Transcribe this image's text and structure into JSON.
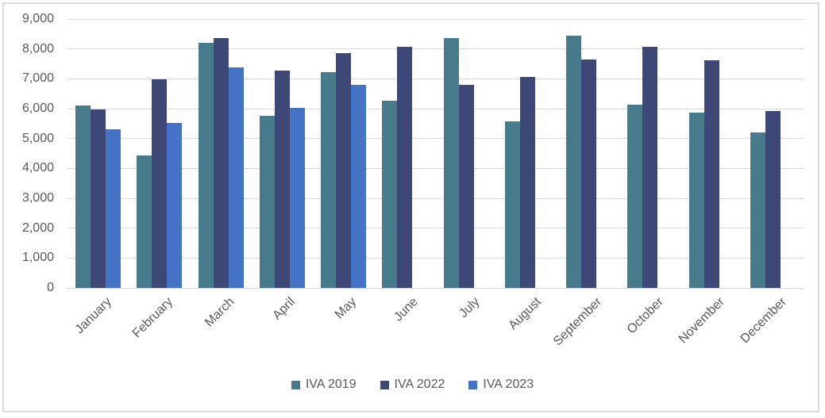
{
  "chart_data": {
    "type": "bar",
    "title": "",
    "xlabel": "",
    "ylabel": "",
    "categories": [
      "January",
      "February",
      "March",
      "April",
      "May",
      "June",
      "July",
      "August",
      "September",
      "October",
      "November",
      "December"
    ],
    "series": [
      {
        "name": "IVA 2019",
        "color": "#477B8C",
        "values": [
          6100,
          4430,
          8200,
          5770,
          7230,
          6270,
          8350,
          5570,
          8450,
          6120,
          5860,
          5210
        ]
      },
      {
        "name": "IVA 2022",
        "color": "#3D4876",
        "values": [
          5970,
          6970,
          8350,
          7280,
          7850,
          8080,
          6800,
          7050,
          7640,
          8060,
          7610,
          5930
        ]
      },
      {
        "name": "IVA 2023",
        "color": "#4472C4",
        "values": [
          5320,
          5530,
          7370,
          6040,
          6810,
          null,
          null,
          null,
          null,
          null,
          null,
          null
        ]
      }
    ],
    "ylim": [
      0,
      9000
    ],
    "ytick_step": 1000,
    "ytick_labels": [
      "0",
      "1,000",
      "2,000",
      "3,000",
      "4,000",
      "5,000",
      "6,000",
      "7,000",
      "8,000",
      "9,000"
    ],
    "grid": true,
    "legend_position": "bottom",
    "axis_text_color": "#595959",
    "gridline_color": "#d9d9d9"
  }
}
